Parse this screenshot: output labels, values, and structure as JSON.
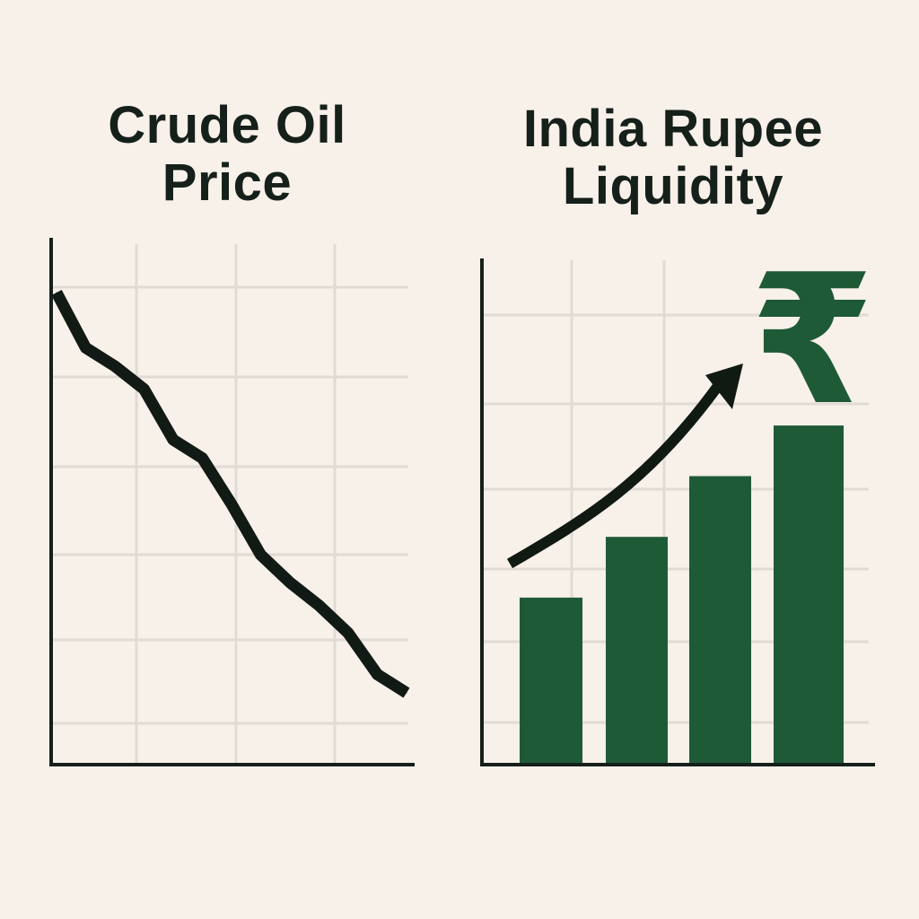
{
  "chart_data": [
    {
      "type": "line",
      "title_lines": [
        "Crude Oil",
        "Price"
      ],
      "x": [
        0,
        1,
        2,
        3,
        4,
        5,
        6,
        7,
        8,
        9,
        10,
        11,
        12
      ],
      "values": [
        100,
        88,
        84,
        79,
        68,
        64,
        54,
        43,
        37,
        32,
        26,
        17,
        13
      ],
      "xlabel": "",
      "ylabel": "",
      "ylim": [
        0,
        112
      ],
      "grid": true,
      "color": "#111a14"
    },
    {
      "type": "bar",
      "title_lines": [
        "India Rupee",
        "Liquidity"
      ],
      "categories": [
        "",
        "",
        "",
        ""
      ],
      "values": [
        33,
        45,
        57,
        67
      ],
      "trend_arrow": {
        "direction": "up",
        "color": "#101a12"
      },
      "currency_symbol": "₹",
      "xlabel": "",
      "ylabel": "",
      "ylim": [
        0,
        100
      ],
      "grid": true,
      "color": "#1f5a37"
    }
  ],
  "colors": {
    "background": "#f7f1ea",
    "grid": "#e0dbd4",
    "axis": "#16201a",
    "line": "#111a14",
    "bar": "#1f5a37"
  },
  "icons": {
    "currency": "rupee-icon",
    "trend": "up-arrow-icon"
  }
}
